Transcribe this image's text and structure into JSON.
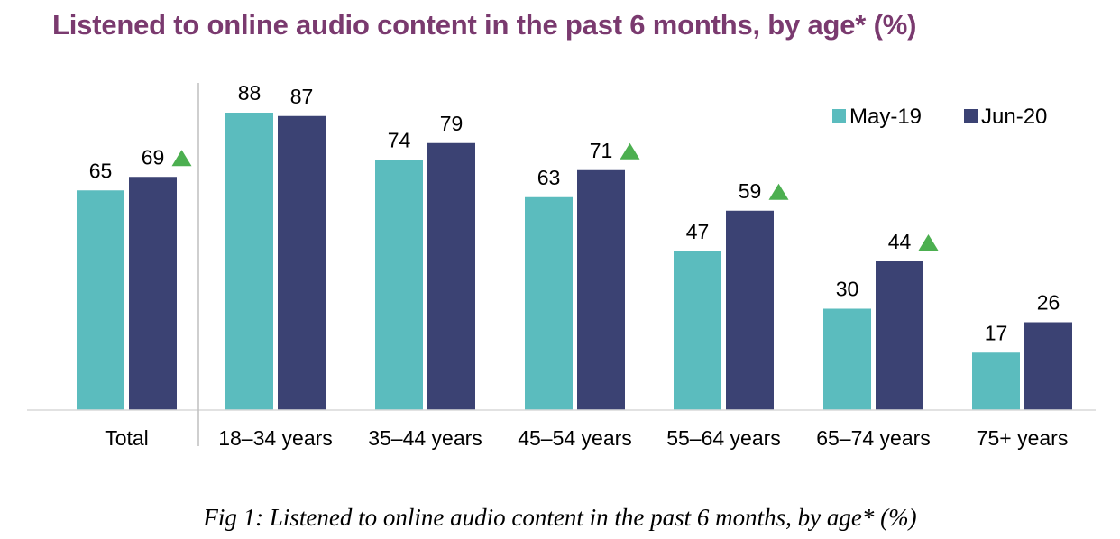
{
  "chart_data": {
    "type": "bar",
    "title": "Listened to online audio content in the past 6 months, by age* (%)",
    "caption": "Fig 1: Listened to online audio content in the past 6 months, by age* (%)",
    "categories": [
      "Total",
      "18–34 years",
      "35–44 years",
      "45–54 years",
      "55–64 years",
      "65–74 years",
      "75+ years"
    ],
    "series": [
      {
        "name": "May-19",
        "color": "#5bbcbe",
        "values": [
          65,
          88,
          74,
          63,
          47,
          30,
          17
        ]
      },
      {
        "name": "Jun-20",
        "color": "#3b4273",
        "values": [
          69,
          87,
          79,
          71,
          59,
          44,
          26
        ]
      }
    ],
    "significant_increase": [
      true,
      false,
      false,
      true,
      true,
      true,
      false
    ],
    "indicator_color": "#4caf50",
    "ylim": [
      0,
      100
    ],
    "legend_position": "top-right",
    "grid": false
  }
}
